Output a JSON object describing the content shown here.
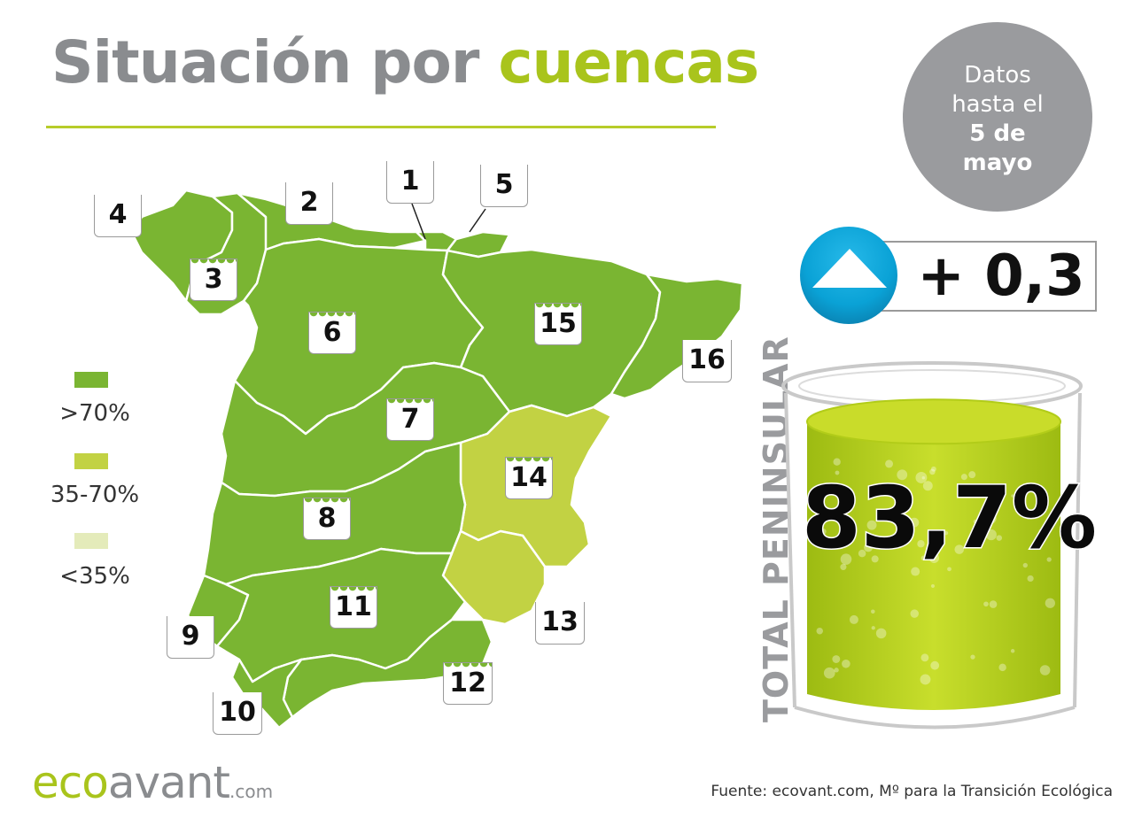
{
  "header": {
    "title_part1": "Situación por",
    "title_part2": "cuencas"
  },
  "date_badge": {
    "line1": "Datos",
    "line2": "hasta el",
    "line3": "5 de",
    "line4": "mayo"
  },
  "legend": [
    {
      "label": ">70%",
      "color": "#7ab532"
    },
    {
      "label": "35-70%",
      "color": "#c2d243"
    },
    {
      "label": "<35%",
      "color": "#e4ebba"
    }
  ],
  "basins": {
    "b1": "1",
    "b2": "2",
    "b3": "3",
    "b4": "4",
    "b5": "5",
    "b6": "6",
    "b7": "7",
    "b8": "8",
    "b9": "9",
    "b10": "10",
    "b11": "11",
    "b12": "12",
    "b13": "13",
    "b14": "14",
    "b15": "15",
    "b16": "16"
  },
  "trend": {
    "value": "+ 0,3",
    "direction": "up",
    "icon": "up-arrow-icon",
    "color": "#0aa2d6"
  },
  "total": {
    "label": "TOTAL PENINSULAR",
    "value": "83,7%",
    "level": 0.837,
    "icon": "water-glass-icon"
  },
  "footer": {
    "brand_eco": "eco",
    "brand_avant": "avant",
    "brand_com": ".com",
    "source": "Fuente: ecovant.com, Mº para la Transición Ecológica"
  }
}
